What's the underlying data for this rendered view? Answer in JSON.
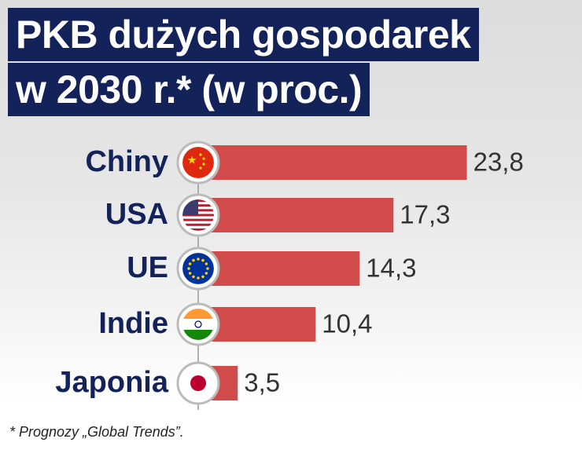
{
  "chart_data": {
    "type": "bar",
    "orientation": "horizontal",
    "title": [
      "PKB dużych gospodarek",
      "w 2030 r.* (w proc.)"
    ],
    "categories": [
      "Chiny",
      "USA",
      "UE",
      "Indie",
      "Japonia"
    ],
    "values": [
      23.8,
      17.3,
      14.3,
      10.4,
      3.5
    ],
    "value_labels": [
      "23,8",
      "17,3",
      "14,3",
      "10,4",
      "3,5"
    ],
    "color": "#d24b4b",
    "xlim": [
      0,
      34
    ],
    "footnote": "* Prognozy „Global Trends”."
  }
}
